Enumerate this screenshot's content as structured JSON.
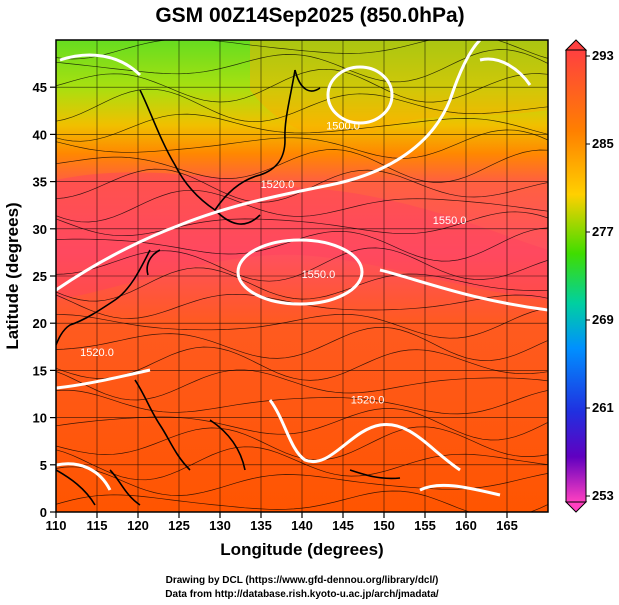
{
  "map": {
    "title": "GSM 00Z14Sep2025 (850.0hPa)",
    "xlabel": "Longitude (degrees)",
    "ylabel": "Latitude  (degrees)",
    "x_ticks": [
      "110",
      "115",
      "120",
      "125",
      "130",
      "135",
      "140",
      "145",
      "150",
      "155",
      "160",
      "165"
    ],
    "y_ticks": [
      "0",
      "5",
      "10",
      "15",
      "20",
      "25",
      "30",
      "35",
      "40",
      "45"
    ],
    "x_range": [
      110,
      170
    ],
    "y_range": [
      0,
      50
    ],
    "contour_labels": [
      {
        "text": "1520.0",
        "lon": 137,
        "lat": 34.3
      },
      {
        "text": "1550.0",
        "lon": 142,
        "lat": 24.8
      },
      {
        "text": "1550.0",
        "lon": 158,
        "lat": 30.5
      },
      {
        "text": "1520.0",
        "lon": 115,
        "lat": 16.5
      },
      {
        "text": "1520.0",
        "lon": 148,
        "lat": 11.5
      },
      {
        "text": "1500.0",
        "lon": 145,
        "lat": 40.5
      }
    ]
  },
  "colorbar": {
    "labels": [
      "293",
      "285",
      "277",
      "269",
      "261",
      "253"
    ],
    "colors": [
      "#ff4040",
      "#ff7a00",
      "#ffc000",
      "#55dd00",
      "#00c8a0",
      "#00a0ff",
      "#2040ff",
      "#4000cc",
      "#ff40c0"
    ]
  },
  "credits": {
    "line1": "Drawing by DCL (https://www.gfd-dennou.org/library/dcl/)",
    "line2": "Data from http://database.rish.kyoto-u.ac.jp/arch/jmadata/"
  },
  "colors": {
    "ocean_warm": "#ff5a10",
    "ridge": "#ff3a40",
    "north_cool": "#66dd20",
    "contour": "#ffffff",
    "frame": "#000000"
  }
}
